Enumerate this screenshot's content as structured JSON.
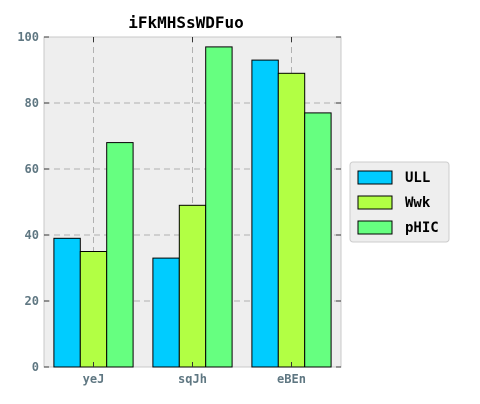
{
  "chart_data": {
    "type": "bar",
    "title": "iFkMHSsWDFuo",
    "xlabel": "",
    "ylabel": "",
    "categories": [
      "yeJ",
      "sqJh",
      "eBEn"
    ],
    "series": [
      {
        "name": "ULL",
        "color": "#00ccff",
        "values": [
          39,
          33,
          93
        ]
      },
      {
        "name": "Wwk",
        "color": "#b2ff44",
        "values": [
          35,
          49,
          89
        ]
      },
      {
        "name": "pHIC",
        "color": "#66ff80",
        "values": [
          68,
          97,
          77
        ]
      }
    ],
    "ylim": [
      0,
      100
    ],
    "yticks": [
      0,
      20,
      40,
      60,
      80,
      100
    ],
    "grid": true,
    "legend_position": "center-right",
    "plot_background": "#eeeeee",
    "grid_color": "#b0b0b0",
    "tick_label_color": "#5f7782",
    "bar_edge_color": "#000000"
  }
}
